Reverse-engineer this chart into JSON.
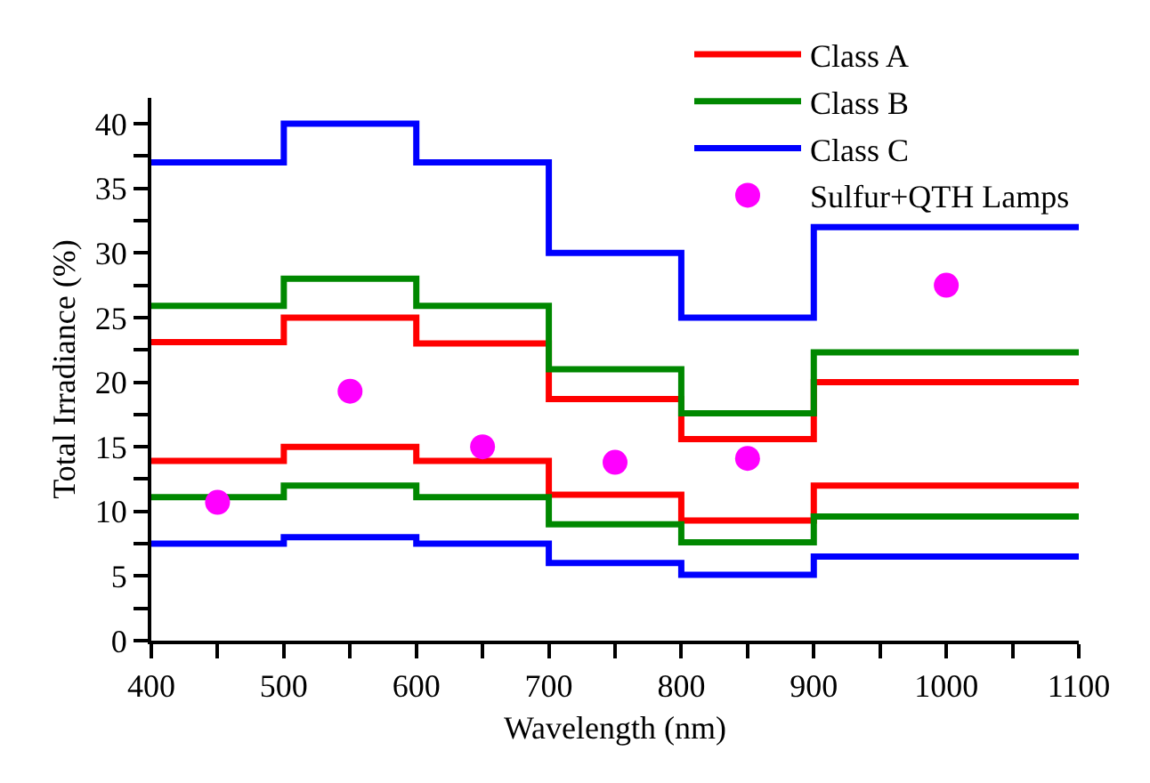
{
  "chart_data": {
    "type": "step",
    "xlabel": "Wavelength (nm)",
    "ylabel": "Total Irradiance (%)",
    "x": [
      400,
      500,
      600,
      700,
      800,
      900,
      1100
    ],
    "series": [
      {
        "name": "Class A",
        "color": "#ff0000",
        "values": [
          23.1,
          25,
          23,
          18.7,
          15.6,
          20,
          20
        ]
      },
      {
        "color": "#ff0000",
        "values": [
          13.9,
          15,
          13.9,
          11.3,
          9.3,
          12,
          12
        ]
      },
      {
        "name": "Class B",
        "color": "#008800",
        "values": [
          25.9,
          28,
          25.9,
          21,
          17.6,
          22.3,
          22.3
        ]
      },
      {
        "color": "#008800",
        "values": [
          11.1,
          12,
          11.1,
          9,
          7.6,
          9.6,
          9.6
        ]
      },
      {
        "name": "Class C",
        "color": "#0000ff",
        "values": [
          37,
          40,
          37,
          30,
          25,
          32,
          32
        ]
      },
      {
        "color": "#0000ff",
        "values": [
          7.5,
          8,
          7.5,
          6,
          5.1,
          6.5,
          6.5
        ]
      },
      {
        "name": "Sulfur+QTH Lamps",
        "type": "scatter",
        "marker": "circle",
        "color": "#ff00ff",
        "x": [
          450,
          550,
          650,
          750,
          850,
          1000
        ],
        "values": [
          10.7,
          19.3,
          15,
          13.8,
          14.1,
          27.5
        ]
      }
    ],
    "xlim": [
      400,
      1100
    ],
    "ylim": [
      0,
      42
    ],
    "xticks": [
      400,
      {
        "value": 450,
        "label": null
      },
      500,
      {
        "value": 550,
        "label": null
      },
      600,
      {
        "value": 650,
        "label": null
      },
      700,
      {
        "value": 750,
        "label": null
      },
      800,
      {
        "value": 850,
        "label": null
      },
      900,
      {
        "value": 950,
        "label": null
      },
      1000,
      {
        "value": 1050,
        "label": null
      },
      1100
    ],
    "yticks": [
      0,
      {
        "value": 2.5,
        "label": null
      },
      5,
      {
        "value": 7.5,
        "label": null
      },
      10,
      {
        "value": 12.5,
        "label": null
      },
      15,
      {
        "value": 17.5,
        "label": null
      },
      20,
      {
        "value": 22.5,
        "label": null
      },
      25,
      {
        "value": 27.5,
        "label": null
      },
      30,
      {
        "value": 32.5,
        "label": null
      },
      35,
      {
        "value": 37.5,
        "label": null
      },
      40
    ],
    "legend": "top right"
  }
}
